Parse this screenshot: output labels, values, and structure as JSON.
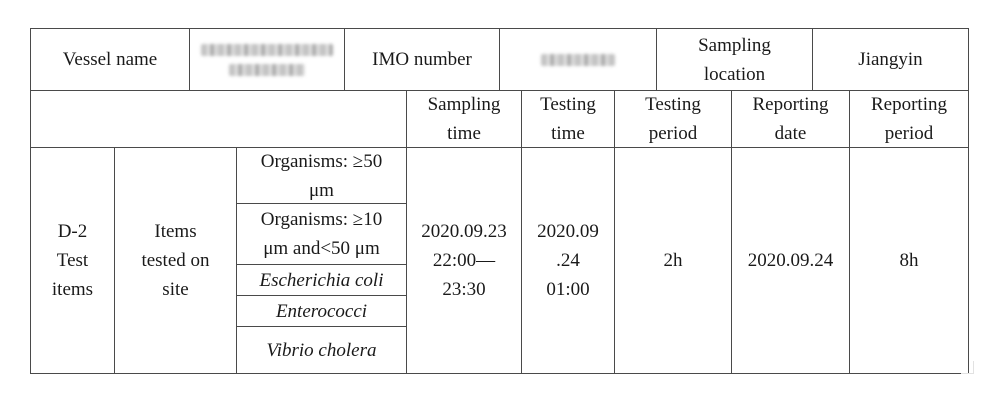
{
  "header": {
    "vessel_name_label": "Vessel name",
    "imo_label": "IMO number",
    "sampling_location_label": [
      "Sampling",
      "location"
    ],
    "sampling_location_value": "Jiangyin"
  },
  "columns": {
    "sampling_time": [
      "Sampling",
      "time"
    ],
    "testing_time": [
      "Testing",
      "time"
    ],
    "testing_period": [
      "Testing",
      "period"
    ],
    "reporting_date": [
      "Reporting",
      "date"
    ],
    "reporting_period": [
      "Reporting",
      "period"
    ]
  },
  "row": {
    "category": [
      "D-2",
      "Test",
      "items"
    ],
    "subcategory": [
      "Items",
      "tested on",
      "site"
    ],
    "items": [
      [
        "Organisms: ≥50",
        "μm"
      ],
      [
        "Organisms: ≥10",
        "μm and<50 μm"
      ],
      [
        "Escherichia coli"
      ],
      [
        "Enterococci"
      ],
      [
        "Vibrio cholera"
      ]
    ],
    "sampling_time": [
      "2020.09.23",
      "22:00—",
      "23:30"
    ],
    "testing_time": [
      "2020.09",
      ".24",
      "01:00"
    ],
    "testing_period": "2h",
    "reporting_date": "2020.09.24",
    "reporting_period": "8h"
  }
}
